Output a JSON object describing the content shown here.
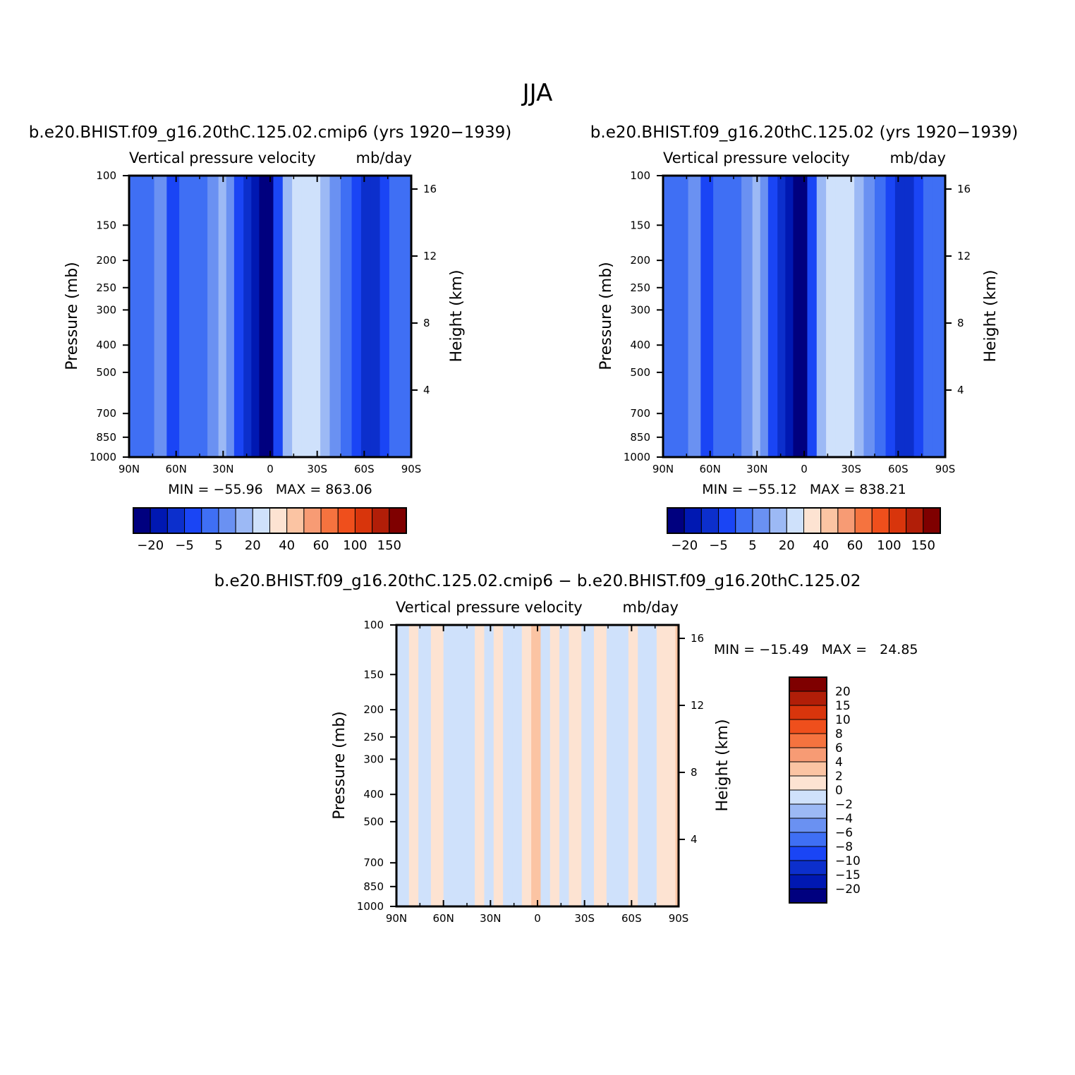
{
  "page": {
    "title": "JJA"
  },
  "panels": [
    {
      "id": "top-left",
      "case_title": "b.e20.BHIST.f09_g16.20thC.125.02.cmip6 (yrs 1920−1939)",
      "subtitle_left": "Vertical pressure velocity",
      "subtitle_right": "mb/day",
      "min_max": "MIN = −55.96   MAX = 863.06"
    },
    {
      "id": "top-right",
      "case_title": "b.e20.BHIST.f09_g16.20thC.125.02 (yrs 1920−1939)",
      "subtitle_left": "Vertical pressure velocity",
      "subtitle_right": "mb/day",
      "min_max": "MIN = −55.12   MAX = 838.21"
    },
    {
      "id": "bottom-diff",
      "case_title": "b.e20.BHIST.f09_g16.20thC.125.02.cmip6 − b.e20.BHIST.f09_g16.20thC.125.02",
      "subtitle_left": "Vertical pressure velocity",
      "subtitle_right": "mb/day",
      "min_max": "MIN = −15.49   MAX =   24.85"
    }
  ],
  "axes": {
    "ylabel_left": "Pressure (mb)",
    "ylabel_right": "Height (km)",
    "x_ticks": [
      "90N",
      "60N",
      "30N",
      "0",
      "30S",
      "60S",
      "90S"
    ],
    "x_tick_values": [
      90,
      60,
      30,
      0,
      -30,
      -60,
      -90
    ],
    "y_pressure_ticks": [
      "100",
      "150",
      "200",
      "250",
      "300",
      "400",
      "500",
      "700",
      "850",
      "1000"
    ],
    "y_pressure_values": [
      100,
      150,
      200,
      250,
      300,
      400,
      500,
      700,
      850,
      1000
    ],
    "y_height_ticks": [
      "16",
      "12",
      "8",
      "4"
    ],
    "y_height_values": [
      16,
      12,
      8,
      4
    ],
    "scale": "log-pressure"
  },
  "colorbars": {
    "full": {
      "colors": [
        "#00007f",
        "#0018b2",
        "#0c2fcc",
        "#1a45f5",
        "#3f6ff4",
        "#6a91f2",
        "#9cb9f5",
        "#cfe1fb",
        "#fde3d2",
        "#fbc4a3",
        "#f79b74",
        "#f5733f",
        "#ef4f1c",
        "#d8350c",
        "#b11e08",
        "#7f0000"
      ],
      "labels": [
        "−20",
        "−5",
        "5",
        "20",
        "40",
        "60",
        "100",
        "150"
      ]
    },
    "diff": {
      "colors": [
        "#7f0000",
        "#b11e08",
        "#d8350c",
        "#ef4f1c",
        "#f5733f",
        "#f79b74",
        "#fbc4a3",
        "#fde3d2",
        "#cfe1fb",
        "#9cb9f5",
        "#6a91f2",
        "#3f6ff4",
        "#1a45f5",
        "#0c2fcc",
        "#0018b2",
        "#00007f"
      ],
      "labels": [
        "20",
        "15",
        "10",
        "8",
        "6",
        "4",
        "2",
        "0",
        "−2",
        "−4",
        "−6",
        "−8",
        "−10",
        "−15",
        "−20"
      ]
    }
  },
  "chart_data": [
    {
      "type": "heatmap",
      "title": "b.e20.BHIST.f09_g16.20thC.125.02.cmip6 (yrs 1920−1939)",
      "variable": "Vertical pressure velocity",
      "units": "mb/day",
      "x": [
        90,
        60,
        30,
        0,
        -30,
        -60,
        -90
      ],
      "min": -55.96,
      "max": 863.06,
      "levels": [
        -20,
        -5,
        5,
        20,
        40,
        60,
        100,
        150
      ],
      "color_index_by_latitude": [
        [
          90,
          4
        ],
        [
          80,
          4
        ],
        [
          74,
          5
        ],
        [
          66,
          3
        ],
        [
          58,
          4
        ],
        [
          48,
          4
        ],
        [
          40,
          5
        ],
        [
          33,
          6
        ],
        [
          28,
          5
        ],
        [
          23,
          3
        ],
        [
          17,
          2
        ],
        [
          12,
          1
        ],
        [
          7,
          0
        ],
        [
          3,
          0
        ],
        [
          -2,
          3
        ],
        [
          -8,
          6
        ],
        [
          -14,
          7
        ],
        [
          -20,
          7
        ],
        [
          -26,
          7
        ],
        [
          -32,
          6
        ],
        [
          -38,
          5
        ],
        [
          -45,
          4
        ],
        [
          -52,
          3
        ],
        [
          -58,
          2
        ],
        [
          -64,
          2
        ],
        [
          -70,
          3
        ],
        [
          -76,
          4
        ],
        [
          -82,
          4
        ],
        [
          -88,
          4
        ]
      ]
    },
    {
      "type": "heatmap",
      "title": "b.e20.BHIST.f09_g16.20thC.125.02 (yrs 1920−1939)",
      "variable": "Vertical pressure velocity",
      "units": "mb/day",
      "x": [
        90,
        60,
        30,
        0,
        -30,
        -60,
        -90
      ],
      "min": -55.12,
      "max": 838.21,
      "levels": [
        -20,
        -5,
        5,
        20,
        40,
        60,
        100,
        150
      ],
      "color_index_by_latitude": [
        [
          90,
          4
        ],
        [
          80,
          4
        ],
        [
          74,
          5
        ],
        [
          66,
          3
        ],
        [
          58,
          4
        ],
        [
          48,
          4
        ],
        [
          40,
          5
        ],
        [
          33,
          6
        ],
        [
          28,
          5
        ],
        [
          23,
          3
        ],
        [
          17,
          2
        ],
        [
          12,
          1
        ],
        [
          7,
          0
        ],
        [
          3,
          0
        ],
        [
          -2,
          3
        ],
        [
          -8,
          6
        ],
        [
          -14,
          7
        ],
        [
          -20,
          7
        ],
        [
          -26,
          7
        ],
        [
          -32,
          6
        ],
        [
          -38,
          5
        ],
        [
          -45,
          4
        ],
        [
          -52,
          3
        ],
        [
          -58,
          2
        ],
        [
          -64,
          2
        ],
        [
          -70,
          3
        ],
        [
          -76,
          4
        ],
        [
          -82,
          4
        ],
        [
          -88,
          4
        ]
      ]
    },
    {
      "type": "heatmap",
      "title": "b.e20.BHIST.f09_g16.20thC.125.02.cmip6 − b.e20.BHIST.f09_g16.20thC.125.02",
      "variable": "Vertical pressure velocity",
      "units": "mb/day",
      "x": [
        90,
        60,
        30,
        0,
        -30,
        -60,
        -90
      ],
      "min": -15.49,
      "max": 24.85,
      "levels": [
        -20,
        -15,
        -10,
        -8,
        -6,
        -4,
        -2,
        0,
        2,
        4,
        6,
        8,
        10,
        15,
        20
      ],
      "color_index_by_latitude": [
        [
          90,
          8
        ],
        [
          82,
          7
        ],
        [
          76,
          8
        ],
        [
          68,
          7
        ],
        [
          60,
          8
        ],
        [
          52,
          8
        ],
        [
          46,
          8
        ],
        [
          40,
          7
        ],
        [
          34,
          8
        ],
        [
          28,
          7
        ],
        [
          22,
          8
        ],
        [
          16,
          8
        ],
        [
          10,
          7
        ],
        [
          4,
          6
        ],
        [
          -2,
          8
        ],
        [
          -8,
          7
        ],
        [
          -14,
          8
        ],
        [
          -20,
          7
        ],
        [
          -28,
          8
        ],
        [
          -36,
          7
        ],
        [
          -44,
          8
        ],
        [
          -52,
          8
        ],
        [
          -58,
          7
        ],
        [
          -64,
          8
        ],
        [
          -70,
          8
        ],
        [
          -76,
          7
        ],
        [
          -82,
          7
        ],
        [
          -88,
          6
        ]
      ]
    }
  ]
}
